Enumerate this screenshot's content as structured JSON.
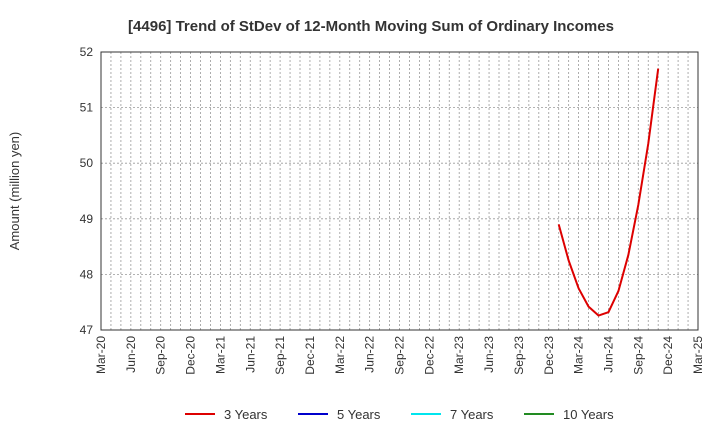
{
  "chart_data": {
    "type": "line",
    "title": "[4496]  Trend of StDev of 12-Month Moving Sum of Ordinary Incomes",
    "xlabel": "",
    "ylabel": "Amount (million yen)",
    "ylim": [
      47,
      52
    ],
    "yticks": [
      "47",
      "48",
      "49",
      "50",
      "51",
      "52"
    ],
    "x_tick_labels": [
      "Mar-20",
      "Jun-20",
      "Sep-20",
      "Dec-20",
      "Mar-21",
      "Jun-21",
      "Sep-21",
      "Dec-21",
      "Mar-22",
      "Jun-22",
      "Sep-22",
      "Dec-22",
      "Mar-23",
      "Jun-23",
      "Sep-23",
      "Dec-23",
      "Mar-24",
      "Jun-24",
      "Sep-24",
      "Dec-24",
      "Mar-25"
    ],
    "x_start": "Mar-20",
    "x_months_total": 60,
    "grid": true,
    "legend_position": "bottom",
    "series": [
      {
        "name": "3 Years",
        "color": "#dd0000",
        "points": [
          {
            "month_index": 46,
            "value": 48.9
          },
          {
            "month_index": 47,
            "value": 48.25
          },
          {
            "month_index": 48,
            "value": 47.75
          },
          {
            "month_index": 49,
            "value": 47.42
          },
          {
            "month_index": 50,
            "value": 47.26
          },
          {
            "month_index": 51,
            "value": 47.32
          },
          {
            "month_index": 52,
            "value": 47.7
          },
          {
            "month_index": 53,
            "value": 48.35
          },
          {
            "month_index": 54,
            "value": 49.25
          },
          {
            "month_index": 55,
            "value": 50.35
          },
          {
            "month_index": 56,
            "value": 51.7
          }
        ]
      },
      {
        "name": "5 Years",
        "color": "#0000cc",
        "points": []
      },
      {
        "name": "7 Years",
        "color": "#00e5ee",
        "points": []
      },
      {
        "name": "10 Years",
        "color": "#228b22",
        "points": []
      }
    ]
  }
}
